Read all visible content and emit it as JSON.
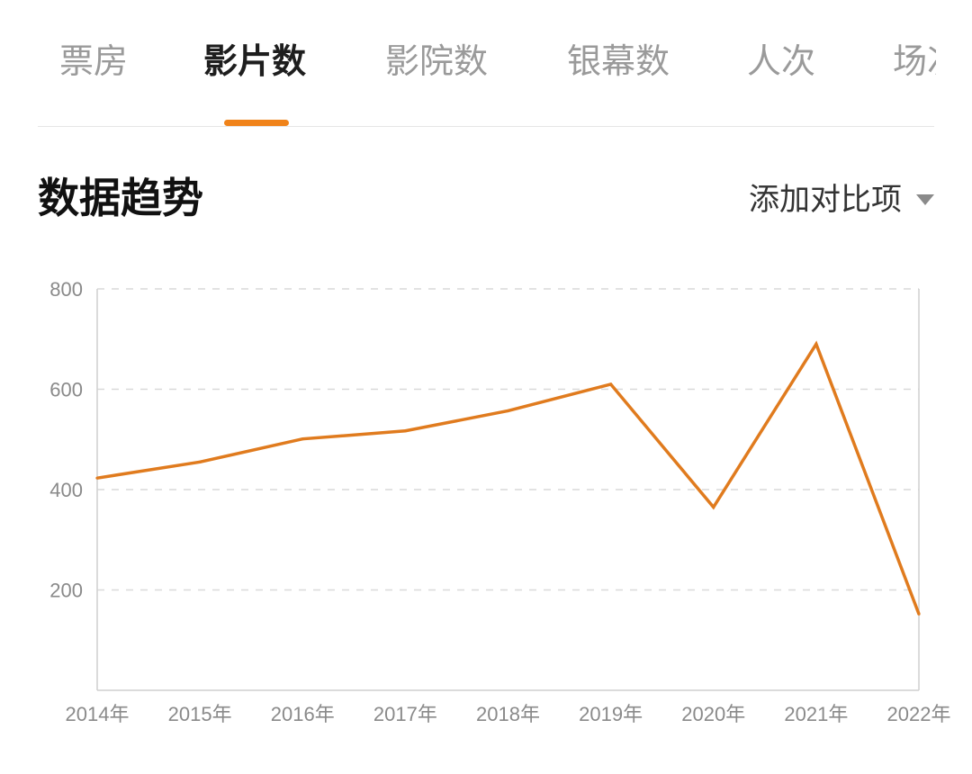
{
  "tabs": [
    {
      "label": "票房",
      "active": false
    },
    {
      "label": "影片数",
      "active": true
    },
    {
      "label": "影院数",
      "active": false
    },
    {
      "label": "银幕数",
      "active": false
    },
    {
      "label": "人次",
      "active": false
    },
    {
      "label": "场次",
      "active": false
    }
  ],
  "section": {
    "title": "数据趋势",
    "compare_label": "添加对比项"
  },
  "colors": {
    "accent": "#f0831a",
    "line": "#e07b1e",
    "grid": "#d9d9d9",
    "axis": "#cfcfcf",
    "tick_text": "#8a8a8a"
  },
  "chart_data": {
    "type": "line",
    "title": "",
    "xlabel": "",
    "ylabel": "",
    "categories": [
      "2014年",
      "2015年",
      "2016年",
      "2017年",
      "2018年",
      "2019年",
      "2020年",
      "2021年",
      "2022年"
    ],
    "series": [
      {
        "values": [
          423,
          455,
          501,
          517,
          557,
          610,
          365,
          690,
          152
        ]
      }
    ],
    "ylim": [
      0,
      800
    ],
    "yticks": [
      200,
      400,
      600,
      800
    ],
    "grid": true,
    "legend": "none"
  }
}
